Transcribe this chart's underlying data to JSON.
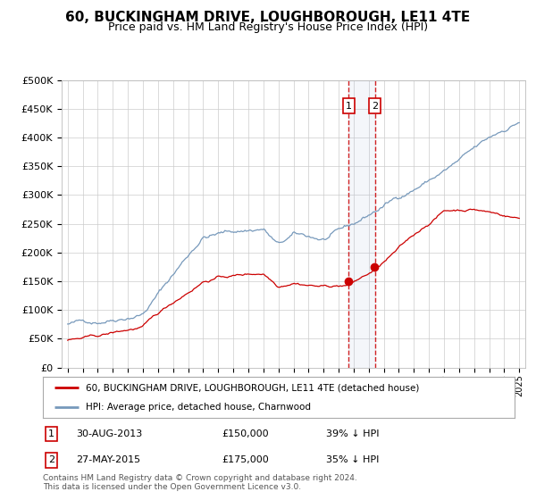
{
  "title": "60, BUCKINGHAM DRIVE, LOUGHBOROUGH, LE11 4TE",
  "subtitle": "Price paid vs. HM Land Registry's House Price Index (HPI)",
  "title_fontsize": 11,
  "subtitle_fontsize": 9,
  "legend_line1": "60, BUCKINGHAM DRIVE, LOUGHBOROUGH, LE11 4TE (detached house)",
  "legend_line2": "HPI: Average price, detached house, Charnwood",
  "red_color": "#cc0000",
  "blue_color": "#7799bb",
  "annotation1_date": "30-AUG-2013",
  "annotation1_price": "£150,000",
  "annotation1_pct": "39% ↓ HPI",
  "annotation2_date": "27-MAY-2015",
  "annotation2_price": "£175,000",
  "annotation2_pct": "35% ↓ HPI",
  "ylim_min": 0,
  "ylim_max": 500000,
  "ytick_step": 50000,
  "footer": "Contains HM Land Registry data © Crown copyright and database right 2024.\nThis data is licensed under the Open Government Licence v3.0.",
  "background_color": "#ffffff",
  "grid_color": "#cccccc",
  "t_sale1": 2013.667,
  "t_sale2": 2015.417,
  "price_sale1": 150000,
  "price_sale2": 175000
}
